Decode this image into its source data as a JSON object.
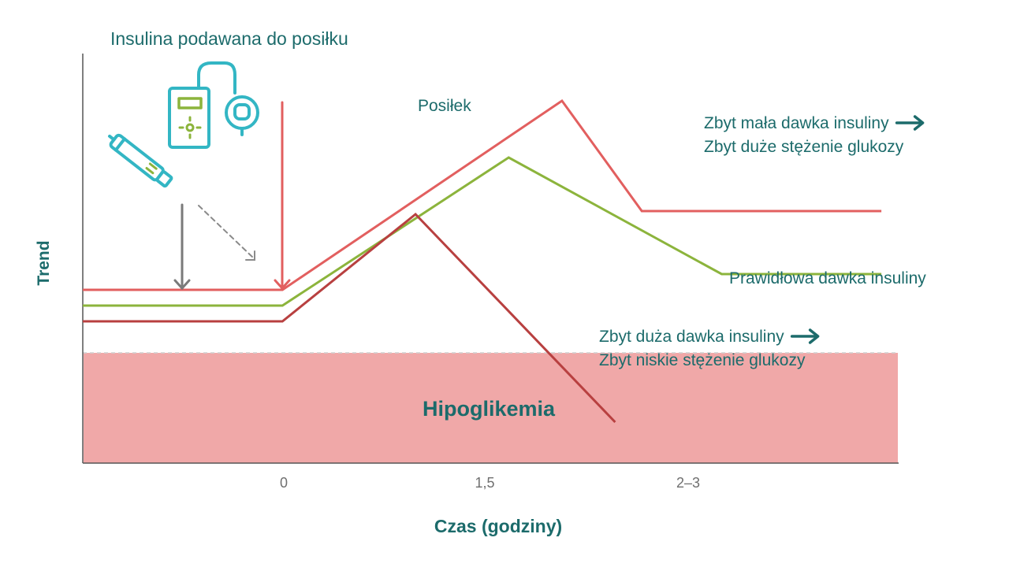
{
  "chart_data": {
    "type": "line",
    "ylabel": "Trend",
    "xlabel": "Czas (godziny)",
    "x_ticks": [
      "0",
      "1,5",
      "2–3"
    ],
    "header_label": "Insulina podawana do posiłku",
    "meal_label": "Posiłek",
    "hypo_label": "Hipoglikemia",
    "series": [
      {
        "name_lines": [
          "Zbyt mała dawka insuliny",
          "Zbyt duże stężenie glukozy"
        ],
        "has_arrow": true,
        "color": "#e25f5f",
        "points": [
          [
            -1.5,
            0.3
          ],
          [
            0,
            0.3
          ],
          [
            2.1,
            0.9
          ],
          [
            2.7,
            0.55
          ],
          [
            4.5,
            0.55
          ]
        ]
      },
      {
        "name_lines": [
          "Prawidłowa dawka insuliny"
        ],
        "has_arrow": false,
        "color": "#8cb43c",
        "points": [
          [
            -1.5,
            0.25
          ],
          [
            0,
            0.25
          ],
          [
            1.7,
            0.72
          ],
          [
            3.3,
            0.35
          ],
          [
            4.5,
            0.35
          ]
        ]
      },
      {
        "name_lines": [
          "Zbyt duża dawka insuliny",
          "Zbyt niskie stężenie glukozy"
        ],
        "has_arrow": true,
        "color": "#b84040",
        "points": [
          [
            -1.5,
            0.2
          ],
          [
            0,
            0.2
          ],
          [
            1.0,
            0.54
          ],
          [
            2.5,
            -0.12
          ]
        ]
      }
    ],
    "hypo_range": [
      -0.25,
      0.1
    ],
    "ylim": [
      -0.25,
      1.05
    ],
    "xlim": [
      -1.5,
      4.6
    ],
    "grid": false,
    "colors": {
      "text_teal": "#1c6b6b",
      "icon_teal": "#33b6c4",
      "icon_green": "#8cb43c",
      "hypo_fill": "#f0a8a8",
      "axis": "#555555",
      "gray_arrow": "#7a7a7a",
      "red_arrow": "#e25f5f"
    },
    "icons": [
      "insulin-pump-icon",
      "insulin-pen-icon"
    ]
  }
}
